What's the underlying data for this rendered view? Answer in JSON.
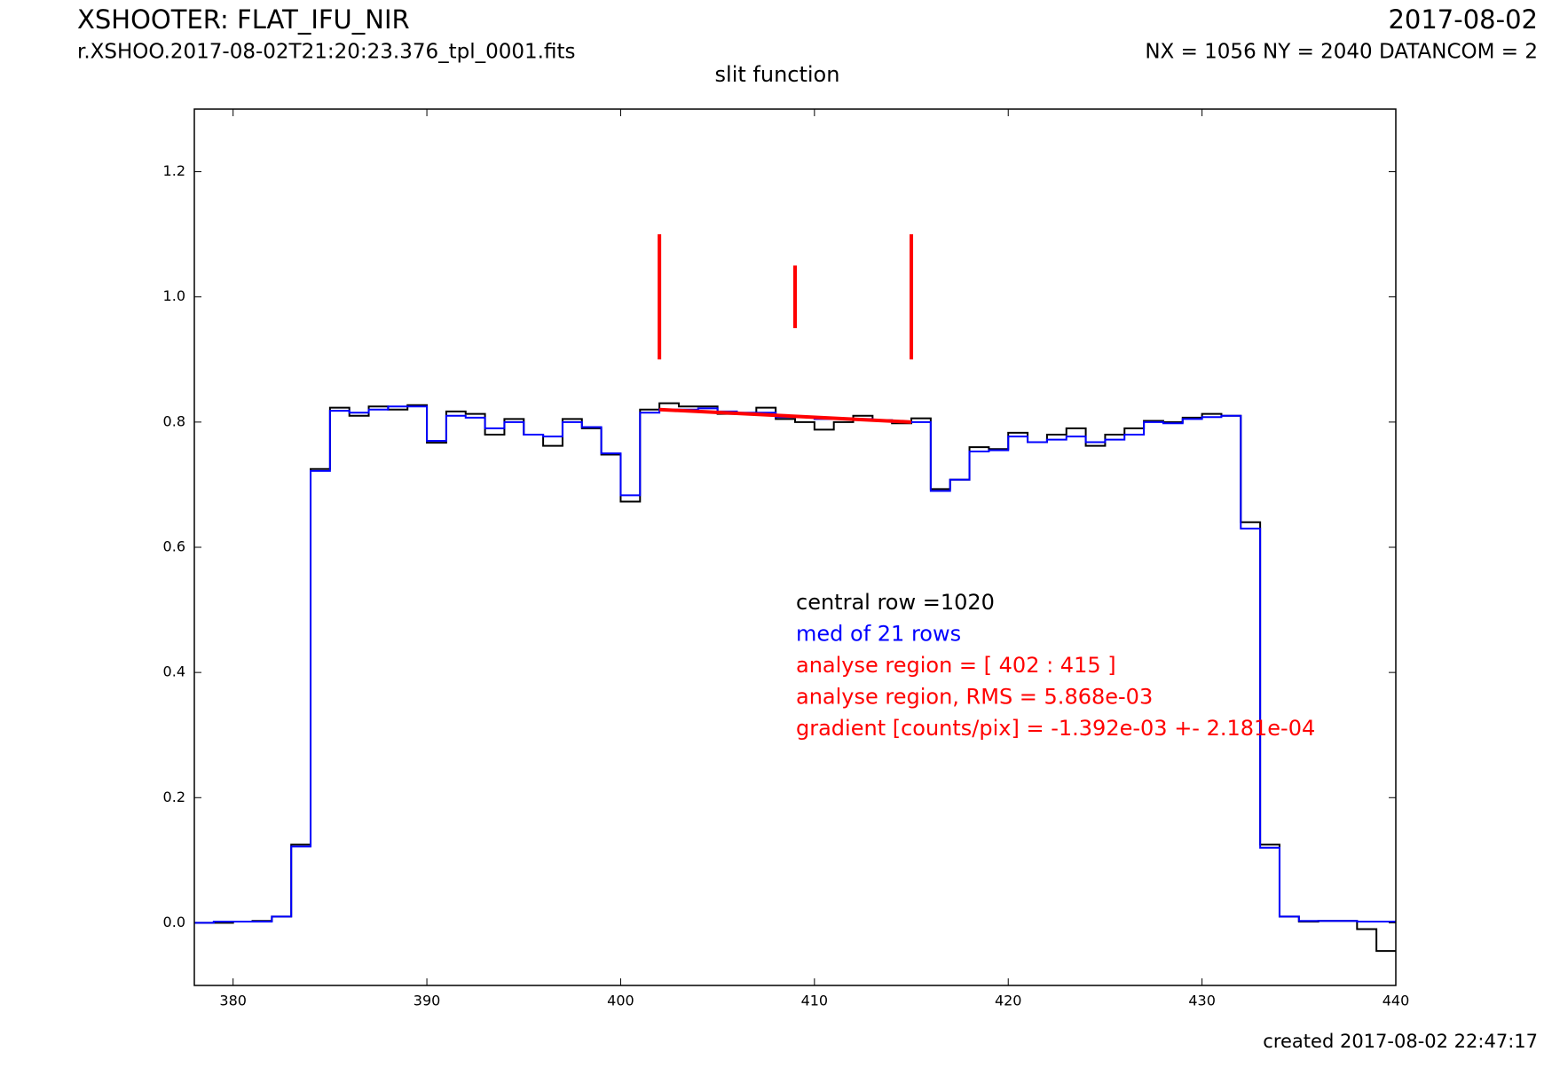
{
  "chart_data": {
    "type": "step",
    "header_title": "XSHOOTER: FLAT_IFU_NIR",
    "header_file": "r.XSHOO.2017-08-02T21:20:23.376_tpl_0001.fits",
    "header_date": "2017-08-02",
    "header_info": "NX = 1056 NY = 2040 DATANCOM = 2",
    "title": "slit function",
    "footer": "created 2017-08-02 22:47:17",
    "xlim": [
      378,
      440
    ],
    "ylim": [
      -0.1,
      1.3
    ],
    "xticks": [
      380,
      390,
      400,
      410,
      420,
      430,
      440
    ],
    "yticks": [
      {
        "value": 0,
        "label": "0.0"
      },
      0.2,
      0.4,
      0.6,
      0.8,
      {
        "value": 1,
        "label": "1.0"
      },
      1.2
    ],
    "x": [
      378,
      379,
      380,
      381,
      382,
      383,
      384,
      385,
      386,
      387,
      388,
      389,
      390,
      391,
      392,
      393,
      394,
      395,
      396,
      397,
      398,
      399,
      400,
      401,
      402,
      403,
      404,
      405,
      406,
      407,
      408,
      409,
      410,
      411,
      412,
      413,
      414,
      415,
      416,
      417,
      418,
      419,
      420,
      421,
      422,
      423,
      424,
      425,
      426,
      427,
      428,
      429,
      430,
      431,
      432,
      433,
      434,
      435,
      436,
      437,
      438,
      439
    ],
    "series": [
      {
        "name": "central row",
        "color": "#000000",
        "values": [
          0.0,
          0.0,
          0.002,
          0.003,
          0.01,
          0.125,
          0.725,
          0.823,
          0.81,
          0.825,
          0.82,
          0.827,
          0.767,
          0.817,
          0.813,
          0.78,
          0.805,
          0.78,
          0.762,
          0.805,
          0.79,
          0.748,
          0.673,
          0.82,
          0.83,
          0.825,
          0.825,
          0.813,
          0.813,
          0.823,
          0.805,
          0.8,
          0.788,
          0.8,
          0.81,
          0.803,
          0.798,
          0.806,
          0.693,
          0.708,
          0.76,
          0.757,
          0.783,
          0.768,
          0.78,
          0.79,
          0.762,
          0.78,
          0.79,
          0.802,
          0.8,
          0.807,
          0.813,
          0.81,
          0.64,
          0.125,
          0.01,
          0.002,
          0.003,
          0.003,
          -0.01,
          -0.045
        ]
      },
      {
        "name": "median",
        "color": "#0000ff",
        "values": [
          0.0,
          0.002,
          0.002,
          0.002,
          0.01,
          0.122,
          0.722,
          0.818,
          0.815,
          0.82,
          0.825,
          0.825,
          0.77,
          0.81,
          0.807,
          0.79,
          0.8,
          0.78,
          0.777,
          0.8,
          0.792,
          0.75,
          0.683,
          0.815,
          0.82,
          0.82,
          0.822,
          0.817,
          0.815,
          0.815,
          0.808,
          0.808,
          0.805,
          0.805,
          0.805,
          0.803,
          0.8,
          0.8,
          0.69,
          0.708,
          0.753,
          0.755,
          0.777,
          0.768,
          0.772,
          0.777,
          0.768,
          0.772,
          0.78,
          0.8,
          0.798,
          0.805,
          0.808,
          0.81,
          0.63,
          0.12,
          0.01,
          0.003,
          0.003,
          0.003,
          0.002,
          0.002
        ]
      }
    ],
    "fit": {
      "x": [
        402,
        415
      ],
      "y": [
        0.82,
        0.8
      ],
      "color": "#ff0000"
    },
    "markers": [
      {
        "x": 402,
        "y": [
          0.9,
          1.1
        ],
        "color": "#ff0000"
      },
      {
        "x": 409,
        "y": [
          0.95,
          1.05
        ],
        "color": "#ff0000"
      },
      {
        "x": 415,
        "y": [
          0.9,
          1.1
        ],
        "color": "#ff0000"
      }
    ],
    "annotations": [
      {
        "text": "central row =1020",
        "color": "#000000"
      },
      {
        "text": "med of 21 rows",
        "color": "#0000ff"
      },
      {
        "text": "analyse region = [ 402 : 415 ]",
        "color": "#ff0000"
      },
      {
        "text": "analyse region, RMS = 5.868e-03",
        "color": "#ff0000"
      },
      {
        "text": "gradient [counts/pix] = -1.392e-03 +- 2.181e-04",
        "color": "#ff0000"
      }
    ]
  }
}
